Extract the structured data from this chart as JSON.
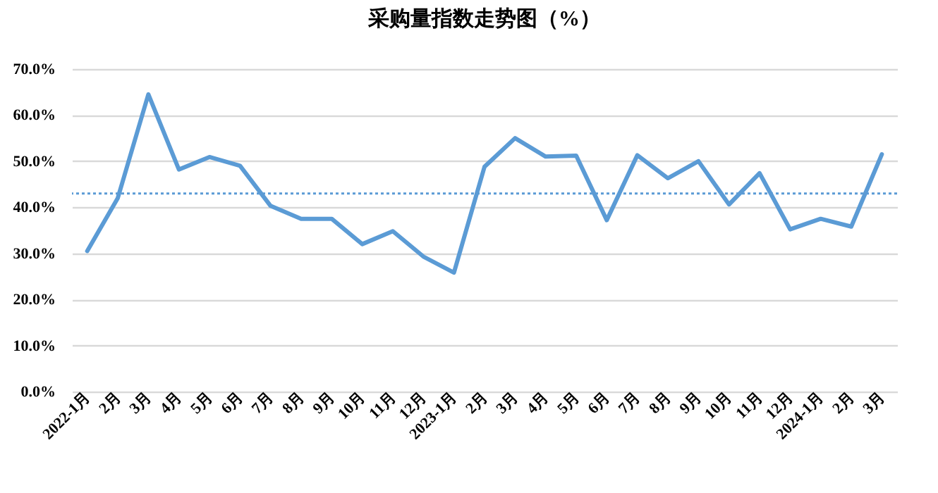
{
  "chart_data": {
    "type": "line",
    "title": "采购量指数走势图（%）",
    "categories": [
      "2022-1月",
      "2月",
      "3月",
      "4月",
      "5月",
      "6月",
      "7月",
      "8月",
      "9月",
      "10月",
      "11月",
      "12月",
      "2023-1月",
      "2月",
      "3月",
      "4月",
      "5月",
      "6月",
      "7月",
      "8月",
      "9月",
      "10月",
      "11月",
      "12月",
      "2024-1月",
      "2月",
      "3月"
    ],
    "series": [
      {
        "color": "#5b9bd5",
        "values": [
          30.5,
          42,
          64.5,
          48.2,
          50.9,
          49,
          40.3,
          37.5,
          37.5,
          32,
          34.8,
          29.3,
          25.8,
          48.8,
          55,
          51,
          51.2,
          37.2,
          51.3,
          46.3,
          50,
          40.6,
          47.4,
          35.2,
          37.5,
          35.8,
          51.5
        ]
      }
    ],
    "ylim": [
      0,
      70
    ],
    "yticks": [
      {
        "value": 0,
        "label": "0.0%"
      },
      {
        "value": 10,
        "label": "10.0%"
      },
      {
        "value": 20,
        "label": "20.0%"
      },
      {
        "value": 30,
        "label": "30.0%"
      },
      {
        "value": 40,
        "label": "40.0%"
      },
      {
        "value": 50,
        "label": "50.0%"
      },
      {
        "value": 60,
        "label": "60.0%"
      },
      {
        "value": 70,
        "label": "70.0%"
      }
    ],
    "grid": "y",
    "marker": "none",
    "line_style": "solid",
    "ref_lines": [
      {
        "axis": "y",
        "value": 43,
        "color": "#5b9bd5",
        "line_style": "dotted"
      }
    ]
  }
}
